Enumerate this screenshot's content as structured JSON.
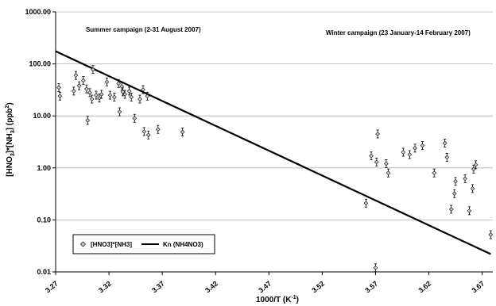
{
  "chart_data": {
    "type": "scatter",
    "x_axis": {
      "label_main": "1000/T (K",
      "label_sup": "-1",
      "label_end": ")",
      "range": [
        3.27,
        3.68
      ],
      "ticks": [
        3.27,
        3.32,
        3.37,
        3.42,
        3.47,
        3.52,
        3.57,
        3.62,
        3.67
      ],
      "tick_labels": [
        "3.27",
        "3.32",
        "3.37",
        "3.42",
        "3.47",
        "3.52",
        "3.57",
        "3.62",
        "3.67"
      ]
    },
    "y_axis": {
      "label_parts": [
        "[HNO",
        "3",
        "]*[NH",
        "3",
        "] (ppb",
        "2",
        ")"
      ],
      "scale": "log",
      "range": [
        0.01,
        1000
      ],
      "ticks": [
        0.01,
        0.1,
        1,
        10,
        100,
        1000
      ],
      "tick_labels": [
        "0.01",
        "0.10",
        "1.00",
        "10.00",
        "100.00",
        "1000.00"
      ]
    },
    "grid": "horizontal",
    "annotations": [
      {
        "text": "Summer campaign (2-31 August 2007)",
        "at": [
          3.303,
          350
        ]
      },
      {
        "text": "Winter campaign (23 January-14 February 2007)",
        "at": [
          3.542,
          330
        ]
      }
    ],
    "legend": {
      "placement": "bottom-left",
      "entries": [
        "[HNO3]*[NH3]",
        "Kn (NH4NO3)"
      ]
    },
    "series": [
      {
        "name": "[HNO3]*[NH3]",
        "kind": "scatter",
        "marker": "diamond-errorbar",
        "points": [
          [
            3.273,
            35
          ],
          [
            3.274,
            24
          ],
          [
            3.287,
            30
          ],
          [
            3.289,
            60
          ],
          [
            3.292,
            38
          ],
          [
            3.296,
            48
          ],
          [
            3.299,
            33
          ],
          [
            3.3,
            8.2
          ],
          [
            3.302,
            28
          ],
          [
            3.304,
            21
          ],
          [
            3.305,
            78
          ],
          [
            3.308,
            25
          ],
          [
            3.311,
            22
          ],
          [
            3.313,
            26
          ],
          [
            3.318,
            45
          ],
          [
            3.321,
            25
          ],
          [
            3.325,
            23
          ],
          [
            3.329,
            42
          ],
          [
            3.33,
            12
          ],
          [
            3.332,
            37
          ],
          [
            3.333,
            29
          ],
          [
            3.335,
            26
          ],
          [
            3.339,
            30
          ],
          [
            3.341,
            23
          ],
          [
            3.344,
            9
          ],
          [
            3.349,
            21
          ],
          [
            3.352,
            32
          ],
          [
            3.353,
            5
          ],
          [
            3.356,
            24
          ],
          [
            3.357,
            4.3
          ],
          [
            3.366,
            5.5
          ],
          [
            3.389,
            4.9
          ],
          [
            3.561,
            0.21
          ],
          [
            3.566,
            1.7
          ],
          [
            3.57,
            0.012
          ],
          [
            3.571,
            1.3
          ],
          [
            3.572,
            4.5
          ],
          [
            3.58,
            1.2
          ],
          [
            3.582,
            0.8
          ],
          [
            3.596,
            2.0
          ],
          [
            3.602,
            1.8
          ],
          [
            3.607,
            2.4
          ],
          [
            3.614,
            2.7
          ],
          [
            3.625,
            0.8
          ],
          [
            3.635,
            3.0
          ],
          [
            3.637,
            1.6
          ],
          [
            3.641,
            0.16
          ],
          [
            3.645,
            0.55
          ],
          [
            3.644,
            0.32
          ],
          [
            3.654,
            0.62
          ],
          [
            3.658,
            0.15
          ],
          [
            3.662,
            0.95
          ],
          [
            3.661,
            0.4
          ],
          [
            3.664,
            1.15
          ],
          [
            3.678,
            0.052
          ]
        ]
      },
      {
        "name": "Kn (NH4NO3)",
        "kind": "line",
        "points": [
          [
            3.27,
            175
          ],
          [
            3.678,
            0.022
          ]
        ]
      }
    ]
  }
}
